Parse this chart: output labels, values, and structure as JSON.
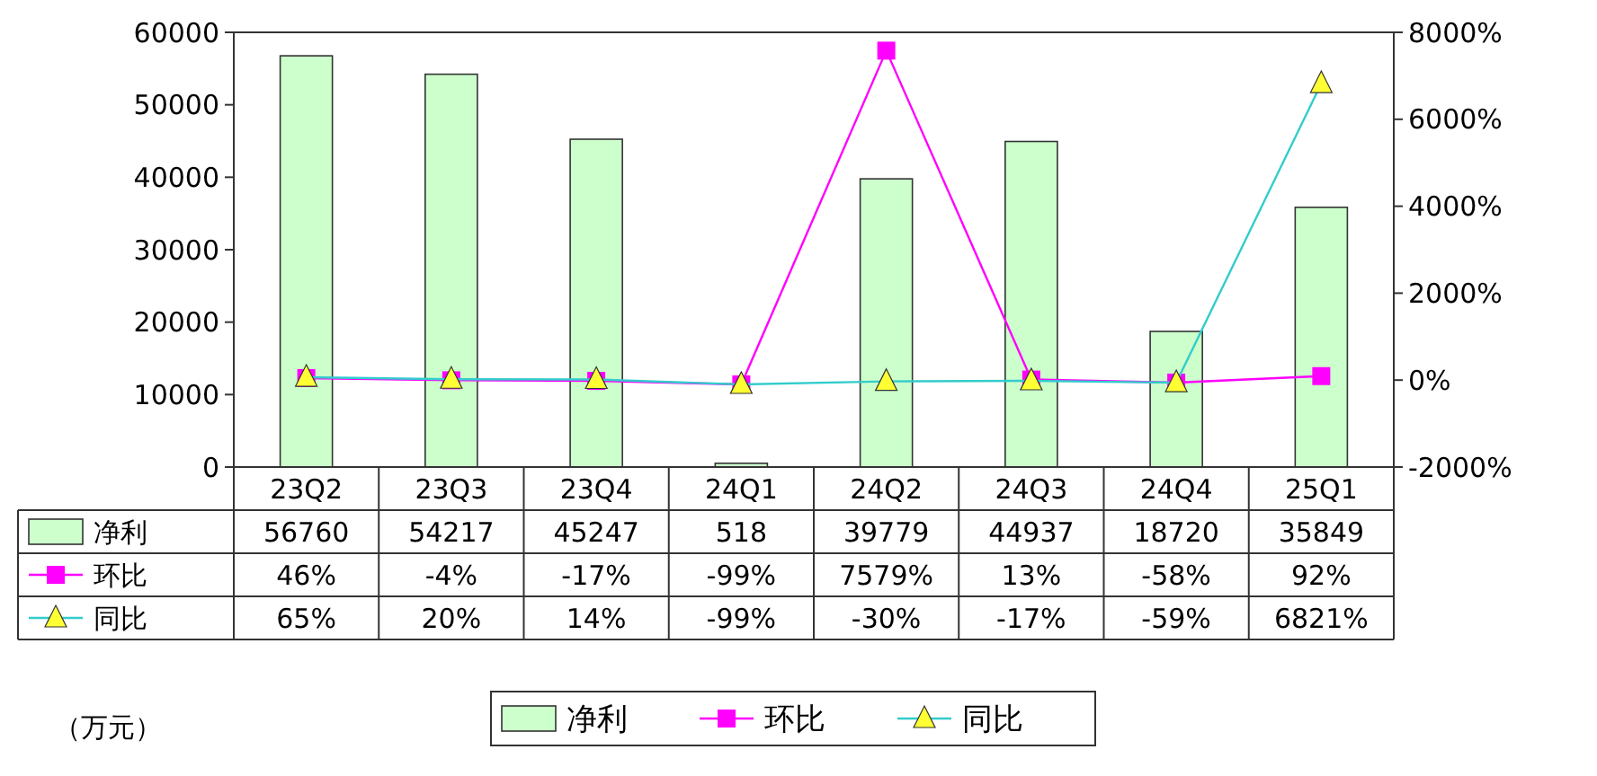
{
  "chart_data": {
    "type": "bar",
    "categories": [
      "23Q2",
      "23Q3",
      "23Q4",
      "24Q1",
      "24Q2",
      "24Q3",
      "24Q4",
      "25Q1"
    ],
    "series": [
      {
        "name": "净利",
        "color": "#ccffcc",
        "values": [
          56760,
          54217,
          45247,
          518,
          39779,
          44937,
          18720,
          35849
        ],
        "value_labels": [
          "56760",
          "54217",
          "45247",
          "518",
          "39779",
          "44937",
          "18720",
          "35849"
        ]
      },
      {
        "name": "环比",
        "type": "line",
        "axis": "y2",
        "color": "#ff00ff",
        "marker": "square",
        "values": [
          46,
          -4,
          -17,
          -99,
          7579,
          13,
          -58,
          92
        ],
        "value_labels": [
          "46%",
          "-4%",
          "-17%",
          "-99%",
          "7579%",
          "13%",
          "-58%",
          "92%"
        ]
      },
      {
        "name": "同比",
        "type": "line",
        "axis": "y2",
        "color": "#33cccc",
        "marker": "triangle",
        "values": [
          65,
          20,
          14,
          -99,
          -30,
          -17,
          -59,
          6821
        ],
        "value_labels": [
          "65%",
          "20%",
          "14%",
          "-99%",
          "-30%",
          "-17%",
          "-59%",
          "6821%"
        ]
      }
    ],
    "ylim": [
      0,
      60000
    ],
    "yticks": [
      0,
      10000,
      20000,
      30000,
      40000,
      50000,
      60000
    ],
    "y2lim": [
      -2000,
      8000
    ],
    "y2ticks": [
      {
        "value": -2000,
        "label": "-2000%"
      },
      {
        "value": 0,
        "label": "0%"
      },
      {
        "value": 2000,
        "label": "2000%"
      },
      {
        "value": 4000,
        "label": "4000%"
      },
      {
        "value": 6000,
        "label": "6000%"
      },
      {
        "value": 8000,
        "label": "8000%"
      }
    ],
    "grid": false,
    "legend": "bottom",
    "annotations": [
      "（万元）"
    ]
  }
}
